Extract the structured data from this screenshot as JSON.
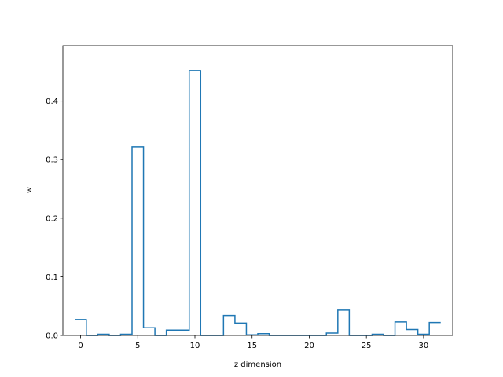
{
  "chart_data": {
    "type": "step",
    "xlabel": "z dimension",
    "ylabel": "w",
    "xlim": [
      -1.55,
      32.55
    ],
    "ylim": [
      0,
      0.4947
    ],
    "xticks": [
      0,
      5,
      10,
      15,
      20,
      25,
      30
    ],
    "yticks": [
      0.0,
      0.1,
      0.2,
      0.3,
      0.4
    ],
    "xtick_labels": [
      "0",
      "5",
      "10",
      "15",
      "20",
      "25",
      "30"
    ],
    "ytick_labels": [
      "0.0",
      "0.1",
      "0.2",
      "0.3",
      "0.4"
    ],
    "grid": false,
    "series": [
      {
        "color": "#1f77b4",
        "x": [
          0,
          1,
          2,
          3,
          4,
          5,
          6,
          7,
          8,
          9,
          10,
          11,
          12,
          13,
          14,
          15,
          16,
          17,
          18,
          19,
          20,
          21,
          22,
          23,
          24,
          25,
          26,
          27,
          28,
          29,
          30,
          31
        ],
        "values": [
          0.027,
          0.0,
          0.002,
          0.0,
          0.002,
          0.322,
          0.013,
          0.0,
          0.009,
          0.009,
          0.452,
          0.0,
          0.0,
          0.034,
          0.021,
          0.001,
          0.003,
          0.0,
          0.0,
          0.0,
          0.0,
          0.0,
          0.004,
          0.043,
          0.0,
          0.0,
          0.002,
          0.0,
          0.023,
          0.01,
          0.002,
          0.022
        ]
      }
    ]
  }
}
